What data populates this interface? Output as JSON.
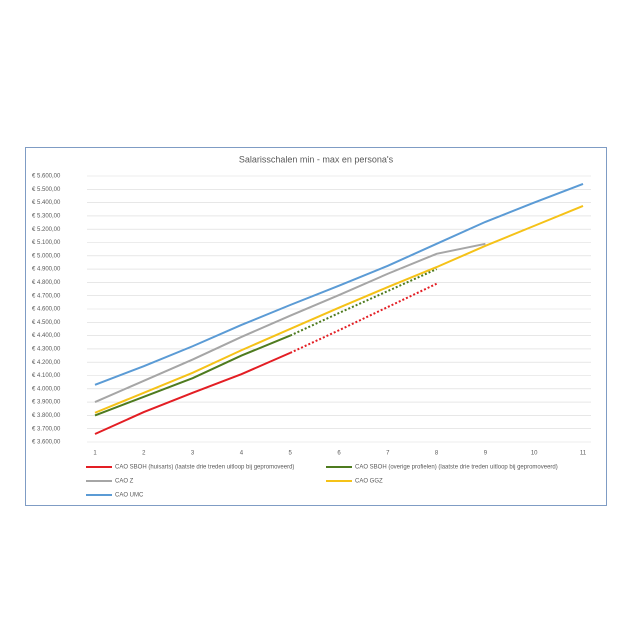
{
  "chart_data": {
    "type": "line",
    "title": "Salarisschalen min - max en persona's",
    "x": [
      1,
      2,
      3,
      4,
      5,
      6,
      7,
      8,
      9,
      10,
      11
    ],
    "xlim": [
      1,
      11
    ],
    "xticks": [
      1,
      2,
      3,
      4,
      5,
      6,
      7,
      8,
      9,
      10,
      11
    ],
    "ylim": [
      3600,
      5600
    ],
    "yticks": [
      {
        "value": 3600,
        "label": "€ 3.600,00"
      },
      {
        "value": 3700,
        "label": "€ 3.700,00"
      },
      {
        "value": 3800,
        "label": "€ 3.800,00"
      },
      {
        "value": 3900,
        "label": "€ 3.900,00"
      },
      {
        "value": 4000,
        "label": "€ 4.000,00"
      },
      {
        "value": 4100,
        "label": "€ 4.100,00"
      },
      {
        "value": 4200,
        "label": "€ 4.200,00"
      },
      {
        "value": 4300,
        "label": "€ 4.300,00"
      },
      {
        "value": 4400,
        "label": "€ 4.400,00"
      },
      {
        "value": 4500,
        "label": "€ 4.500,00"
      },
      {
        "value": 4600,
        "label": "€ 4.600,00"
      },
      {
        "value": 4700,
        "label": "€ 4.700,00"
      },
      {
        "value": 4800,
        "label": "€ 4.800,00"
      },
      {
        "value": 4900,
        "label": "€ 4.900,00"
      },
      {
        "value": 5000,
        "label": "€ 5.000,00"
      },
      {
        "value": 5100,
        "label": "€ 5.100,00"
      },
      {
        "value": 5200,
        "label": "€ 5.200,00"
      },
      {
        "value": 5300,
        "label": "€ 5.300,00"
      },
      {
        "value": 5400,
        "label": "€ 5.400,00"
      },
      {
        "value": 5500,
        "label": "€ 5.500,00"
      },
      {
        "value": 5600,
        "label": "€ 5.600,00"
      }
    ],
    "grid": true,
    "series": [
      {
        "name": "CAO SBOH (huisarts) (laatste drie treden uitloop bij gepromoveerd)",
        "color": "#e31e24",
        "dashed_from": 5,
        "values": [
          3660,
          3825,
          3970,
          4110,
          4270,
          4440,
          4615,
          4790,
          null,
          null,
          null
        ]
      },
      {
        "name": "CAO SBOH (overige profielen) (laatste drie treden uitloop bij gepromoveerd)",
        "color": "#4e7b1f",
        "dashed_from": 5,
        "values": [
          3800,
          3940,
          4080,
          4250,
          4400,
          4570,
          4735,
          4900,
          null,
          null,
          null
        ]
      },
      {
        "name": "CAO Z",
        "color": "#a6a6a6",
        "values": [
          3900,
          4060,
          4220,
          4390,
          4550,
          4705,
          4865,
          5015,
          5090,
          null,
          null
        ]
      },
      {
        "name": "CAO GGZ",
        "color": "#f5c218",
        "values": [
          3820,
          3970,
          4120,
          4290,
          4450,
          4610,
          4765,
          4915,
          5075,
          5225,
          5375
        ]
      },
      {
        "name": "CAO UMC",
        "color": "#5b9bd5",
        "values": [
          4030,
          4170,
          4320,
          4480,
          4630,
          4775,
          4925,
          5090,
          5255,
          5400,
          5540
        ]
      }
    ]
  }
}
